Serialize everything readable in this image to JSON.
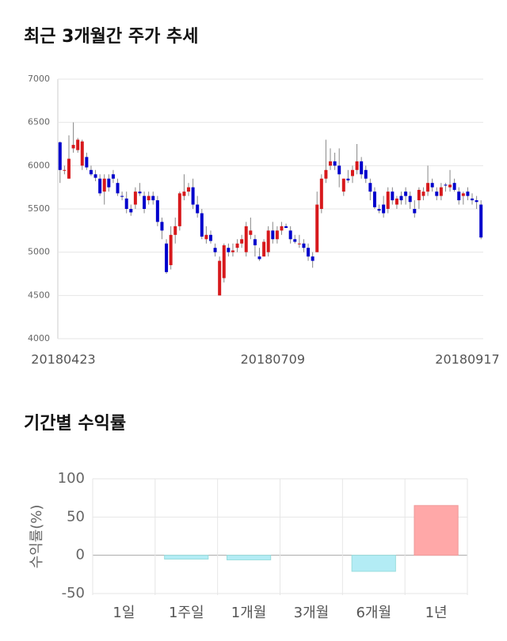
{
  "chart_data": [
    {
      "type": "candlestick",
      "title": "최근 3개월간 주가 추세",
      "categories": [
        "20180423",
        null,
        null,
        null,
        null,
        null,
        null,
        null,
        null,
        null,
        null,
        null,
        null,
        null,
        null,
        null,
        null,
        null,
        null,
        null,
        null,
        null,
        null,
        null,
        null,
        null,
        null,
        null,
        null,
        null,
        null,
        null,
        null,
        null,
        null,
        null,
        null,
        null,
        null,
        null,
        null,
        null,
        null,
        null,
        null,
        null,
        null,
        null,
        "20180709",
        null,
        null,
        null,
        null,
        null,
        null,
        null,
        null,
        null,
        null,
        null,
        null,
        null,
        null,
        null,
        null,
        null,
        null,
        null,
        null,
        null,
        null,
        null,
        null,
        null,
        null,
        null,
        null,
        null,
        null,
        null,
        null,
        null,
        null,
        null,
        null,
        null,
        null,
        null,
        null,
        null,
        null,
        null,
        null,
        null,
        null,
        "20180917"
      ],
      "values": [
        [
          6270,
          6280,
          5800,
          5950
        ],
        [
          5950,
          6000,
          5900,
          5950
        ],
        [
          5850,
          6350,
          5850,
          6080
        ],
        [
          6200,
          6500,
          6150,
          6240
        ],
        [
          6180,
          6320,
          6150,
          6300
        ],
        [
          6000,
          6300,
          5950,
          6280
        ],
        [
          6100,
          6150,
          5950,
          5980
        ],
        [
          5950,
          6000,
          5880,
          5900
        ],
        [
          5900,
          5950,
          5820,
          5860
        ],
        [
          5850,
          5900,
          5650,
          5680
        ],
        [
          5700,
          5900,
          5550,
          5850
        ],
        [
          5850,
          5900,
          5700,
          5750
        ],
        [
          5900,
          5950,
          5800,
          5850
        ],
        [
          5800,
          5850,
          5650,
          5680
        ],
        [
          5650,
          5700,
          5600,
          5640
        ],
        [
          5620,
          5700,
          5450,
          5500
        ],
        [
          5500,
          5550,
          5420,
          5460
        ],
        [
          5550,
          5750,
          5500,
          5700
        ],
        [
          5700,
          5800,
          5650,
          5680
        ],
        [
          5650,
          5700,
          5450,
          5500
        ],
        [
          5600,
          5700,
          5550,
          5650
        ],
        [
          5650,
          5700,
          5550,
          5600
        ],
        [
          5600,
          5650,
          5300,
          5350
        ],
        [
          5350,
          5400,
          5150,
          5250
        ],
        [
          5100,
          5150,
          4750,
          4770
        ],
        [
          4850,
          5300,
          4800,
          5200
        ],
        [
          5200,
          5400,
          5100,
          5300
        ],
        [
          5300,
          5700,
          5250,
          5680
        ],
        [
          5650,
          5900,
          5600,
          5700
        ],
        [
          5700,
          5800,
          5650,
          5750
        ],
        [
          5750,
          5850,
          5500,
          5550
        ],
        [
          5550,
          5650,
          5400,
          5450
        ],
        [
          5450,
          5500,
          5150,
          5180
        ],
        [
          5150,
          5300,
          5100,
          5200
        ],
        [
          5200,
          5250,
          5100,
          5130
        ],
        [
          5050,
          5100,
          4950,
          5000
        ],
        [
          4500,
          4950,
          4500,
          4900
        ],
        [
          4700,
          5100,
          4650,
          5080
        ],
        [
          5050,
          5100,
          4950,
          5000
        ],
        [
          5000,
          5100,
          4950,
          5020
        ],
        [
          5050,
          5150,
          5000,
          5100
        ],
        [
          5100,
          5200,
          5050,
          5150
        ],
        [
          5000,
          5350,
          4950,
          5300
        ],
        [
          5200,
          5400,
          5150,
          5250
        ],
        [
          5150,
          5200,
          4950,
          5080
        ],
        [
          4950,
          5050,
          4900,
          4920
        ],
        [
          4950,
          5150,
          4950,
          5120
        ],
        [
          5000,
          5300,
          4950,
          5250
        ],
        [
          5250,
          5350,
          5100,
          5150
        ],
        [
          5150,
          5300,
          5100,
          5250
        ],
        [
          5250,
          5350,
          5200,
          5300
        ],
        [
          5300,
          5330,
          5280,
          5280
        ],
        [
          5250,
          5300,
          5100,
          5150
        ],
        [
          5150,
          5200,
          5100,
          5120
        ],
        [
          5100,
          5200,
          5050,
          5100
        ],
        [
          5100,
          5150,
          5000,
          5050
        ],
        [
          5050,
          5100,
          4900,
          4950
        ],
        [
          4950,
          5000,
          4820,
          4900
        ],
        [
          5000,
          5700,
          5000,
          5550
        ],
        [
          5500,
          5900,
          5450,
          5850
        ],
        [
          5850,
          6300,
          5800,
          5950
        ],
        [
          6000,
          6200,
          5950,
          6050
        ],
        [
          6050,
          6150,
          5950,
          6000
        ],
        [
          6000,
          6200,
          5750,
          5900
        ],
        [
          5700,
          5850,
          5650,
          5850
        ],
        [
          5850,
          5950,
          5800,
          5830
        ],
        [
          5880,
          6000,
          5800,
          5950
        ],
        [
          5950,
          6250,
          5900,
          6050
        ],
        [
          6050,
          6100,
          5850,
          5900
        ],
        [
          5950,
          6000,
          5800,
          5850
        ],
        [
          5800,
          5850,
          5600,
          5700
        ],
        [
          5700,
          5750,
          5500,
          5520
        ],
        [
          5500,
          5550,
          5450,
          5480
        ],
        [
          5550,
          5650,
          5400,
          5450
        ],
        [
          5500,
          5750,
          5450,
          5700
        ],
        [
          5700,
          5750,
          5550,
          5600
        ],
        [
          5550,
          5650,
          5500,
          5620
        ],
        [
          5650,
          5700,
          5550,
          5600
        ],
        [
          5700,
          5750,
          5550,
          5650
        ],
        [
          5650,
          5700,
          5500,
          5580
        ],
        [
          5500,
          5600,
          5400,
          5450
        ],
        [
          5600,
          5750,
          5500,
          5720
        ],
        [
          5650,
          5750,
          5600,
          5700
        ],
        [
          5700,
          6000,
          5650,
          5800
        ],
        [
          5800,
          5850,
          5700,
          5750
        ],
        [
          5700,
          5750,
          5600,
          5650
        ],
        [
          5650,
          5800,
          5600,
          5750
        ],
        [
          5780,
          5800,
          5700,
          5770
        ],
        [
          5750,
          5950,
          5700,
          5780
        ],
        [
          5800,
          5850,
          5700,
          5720
        ],
        [
          5700,
          5750,
          5550,
          5600
        ],
        [
          5650,
          5700,
          5550,
          5680
        ],
        [
          5700,
          5750,
          5600,
          5650
        ],
        [
          5620,
          5680,
          5550,
          5600
        ],
        [
          5600,
          5650,
          5500,
          5580
        ],
        [
          5550,
          5600,
          5150,
          5170
        ]
      ],
      "up_color": "#d7191c",
      "down_color": "#0000cc",
      "ylim": [
        4000,
        7000
      ],
      "yticks": [
        4000,
        4500,
        5000,
        5500,
        6000,
        6500,
        7000
      ],
      "grid": true
    },
    {
      "type": "bar",
      "title": "기간별 수익률",
      "ylabel": "수익률(%)",
      "categories": [
        "1일",
        "1주일",
        "1개월",
        "3개월",
        "6개월",
        "1년"
      ],
      "values": [
        0,
        -5,
        -6,
        0,
        -21,
        65
      ],
      "positive_color": "#ffa8a8",
      "negative_color": "#b3ecf5",
      "ylim": [
        -50,
        100
      ],
      "yticks": [
        -50,
        0,
        50,
        100
      ],
      "grid": true
    }
  ]
}
